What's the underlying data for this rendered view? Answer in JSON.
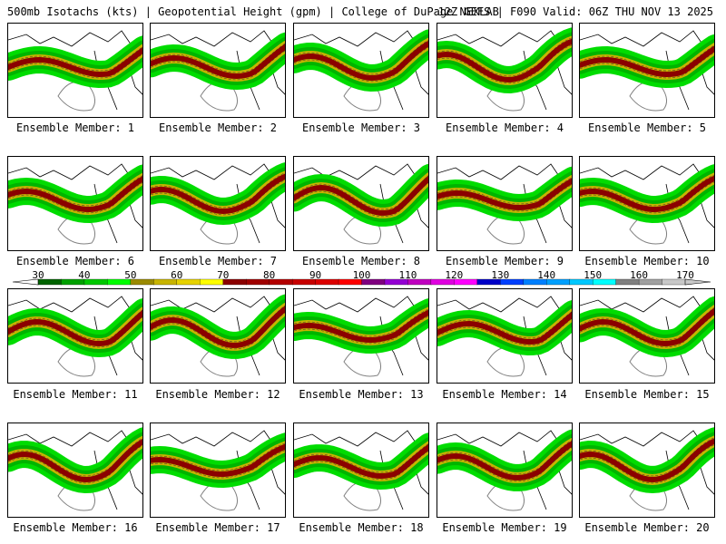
{
  "header": {
    "title_left": "500mb Isotachs (kts) | Geopotential Height (gpm) | College of DuPage NEXLAB",
    "title_right": "12Z GEFS | F090 Valid: 06Z THU NOV 13 2025"
  },
  "members": [
    "Ensemble Member: 1",
    "Ensemble Member: 2",
    "Ensemble Member: 3",
    "Ensemble Member: 4",
    "Ensemble Member: 5",
    "Ensemble Member: 6",
    "Ensemble Member: 7",
    "Ensemble Member: 8",
    "Ensemble Member: 9",
    "Ensemble Member: 10",
    "Ensemble Member: 11",
    "Ensemble Member: 12",
    "Ensemble Member: 13",
    "Ensemble Member: 14",
    "Ensemble Member: 15",
    "Ensemble Member: 16",
    "Ensemble Member: 17",
    "Ensemble Member: 18",
    "Ensemble Member: 19",
    "Ensemble Member: 20"
  ],
  "colorbar": {
    "ticks": [
      "30",
      "40",
      "50",
      "60",
      "70",
      "80",
      "90",
      "100",
      "110",
      "120",
      "130",
      "140",
      "150",
      "160",
      "170"
    ],
    "colors": [
      "#006400",
      "#00a000",
      "#00c800",
      "#00ff00",
      "#9a8a00",
      "#c8b400",
      "#e6d200",
      "#ffff00",
      "#8b0000",
      "#a00000",
      "#b40000",
      "#c80000",
      "#dc0000",
      "#ff0000",
      "#800080",
      "#9400d3",
      "#c000c0",
      "#e000e0",
      "#ff00ff",
      "#0000c8",
      "#0040ff",
      "#0080ff",
      "#00a0ff",
      "#00c8ff",
      "#00ffff",
      "#808080",
      "#a0a0a0",
      "#c8c8c8"
    ]
  },
  "palette": {
    "speed_50_70": "#00b400",
    "speed_70_90": "#c8b400",
    "speed_90_110": "#8b0000",
    "speed_30_50": "#00dc00",
    "height_contour": "#808080",
    "coastline": "#000000"
  }
}
